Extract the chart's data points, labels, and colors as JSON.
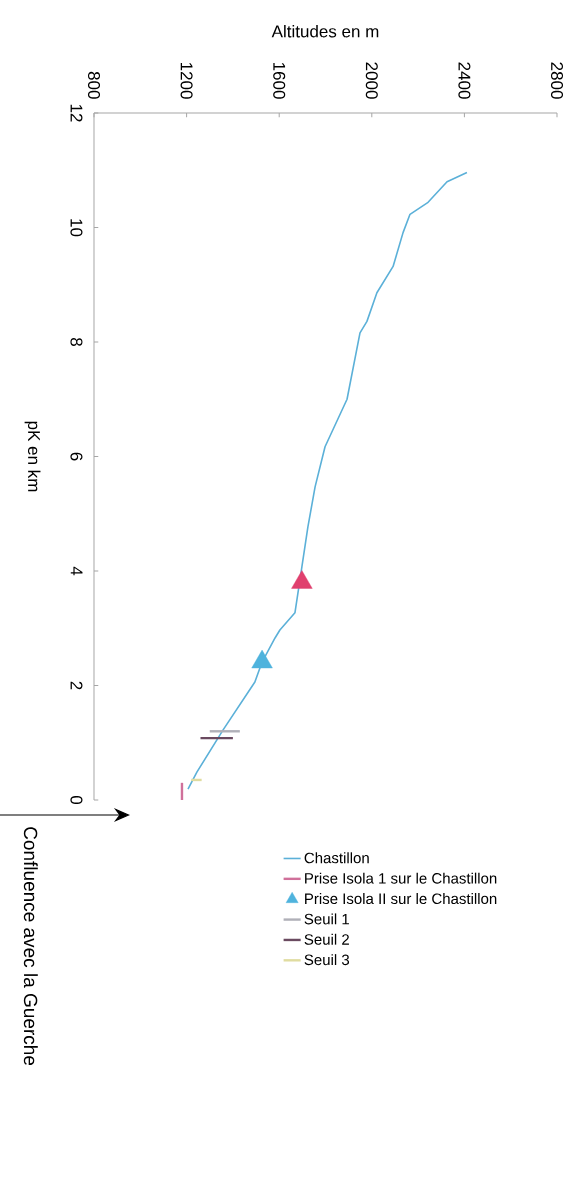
{
  "chart_data": {
    "type": "line",
    "xlabel": "Altitudes en m",
    "ylabel": "pK en km",
    "xlim": [
      800,
      2800
    ],
    "xticks": [
      800,
      1200,
      1600,
      2000,
      2400,
      2800
    ],
    "ylim": [
      0,
      12
    ],
    "yticks": [
      0,
      2,
      4,
      6,
      8,
      10,
      12
    ],
    "legend": "bottom",
    "series": [
      {
        "name": "Chastillon",
        "color": "#5bb0d8",
        "x": [
          2411,
          2325,
          2243,
          2165,
          2135,
          2092,
          2022,
          1979,
          1949,
          1893,
          1798,
          1755,
          1724,
          1698,
          1668,
          1603,
          1582,
          1526,
          1495,
          1357,
          1245,
          1206
        ],
        "values": [
          10.96,
          10.8,
          10.44,
          10.23,
          9.91,
          9.32,
          8.86,
          8.36,
          8.16,
          7.0,
          6.17,
          5.47,
          4.77,
          4.07,
          3.27,
          2.97,
          2.83,
          2.41,
          2.06,
          1.22,
          0.49,
          0.19
        ]
      },
      {
        "name": "Prise Isola 1 sur le Chastillon",
        "color": "#d0709a",
        "x": [
          1180,
          1180
        ],
        "values": [
          0.3,
          0.0
        ]
      },
      {
        "name": "Prise Isola II sur le Chastillon",
        "type": "scatter",
        "marker": "triangle",
        "color": "#4fb3dd",
        "x": [
          1526
        ],
        "values": [
          2.41
        ]
      },
      {
        "name": "Seuil 1",
        "color": "#b0b0b8",
        "x": [
          1300,
          1430
        ],
        "values": [
          1.2,
          1.2
        ]
      },
      {
        "name": "Seuil 2",
        "color": "#6a4a60",
        "x": [
          1260,
          1400
        ],
        "values": [
          1.08,
          1.08
        ]
      },
      {
        "name": "Seuil 3",
        "color": "#e0dca0",
        "x": [
          1220,
          1265
        ],
        "values": [
          0.35,
          0.35
        ]
      },
      {
        "type": "scatter",
        "marker": "triangle",
        "color": "#e0406e",
        "x": [
          1698
        ],
        "values": [
          3.8
        ]
      }
    ],
    "annotations": [
      "Confluence avec la Guerche"
    ]
  }
}
